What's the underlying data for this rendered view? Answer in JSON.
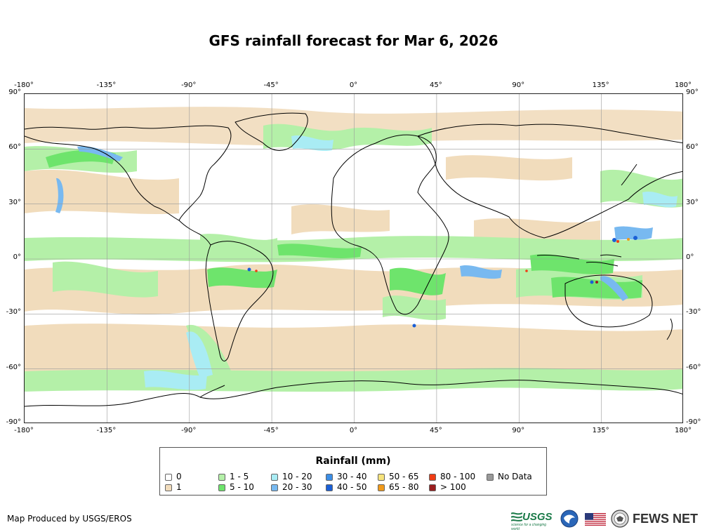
{
  "title": "GFS rainfall forecast for Mar 6, 2026",
  "axes": {
    "lon_ticks": [
      "-180°",
      "-135°",
      "-90°",
      "-45°",
      "0°",
      "45°",
      "90°",
      "135°",
      "180°"
    ],
    "lat_ticks": [
      "90°",
      "60°",
      "30°",
      "0°",
      "-30°",
      "-60°",
      "-90°"
    ]
  },
  "legend": {
    "title": "Rainfall (mm)",
    "items": [
      {
        "label": "0",
        "color": "#ffffff"
      },
      {
        "label": "1",
        "color": "#f1dcbc"
      },
      {
        "label": "1 - 5",
        "color": "#b4f0a8"
      },
      {
        "label": "5 - 10",
        "color": "#6ee46c"
      },
      {
        "label": "10 - 20",
        "color": "#a9ecf4"
      },
      {
        "label": "20 - 30",
        "color": "#78b9f0"
      },
      {
        "label": "30 - 40",
        "color": "#3c8ee6"
      },
      {
        "label": "40 - 50",
        "color": "#1a5fd6"
      },
      {
        "label": "50 - 65",
        "color": "#f6e37c"
      },
      {
        "label": "65 - 80",
        "color": "#f09a1a"
      },
      {
        "label": "80 - 100",
        "color": "#f03c14"
      },
      {
        "label": "> 100",
        "color": "#9a1e1e"
      },
      {
        "label": "No Data",
        "color": "#999999"
      }
    ]
  },
  "credit": "Map Produced by USGS/EROS",
  "logos": {
    "usgs": "USGS",
    "usgs_tagline": "science for a changing world",
    "fews": "FEWS NET"
  },
  "icons": [
    "usgs-logo",
    "noaa-logo-icon",
    "us-flag-icon",
    "state-department-seal-icon"
  ]
}
